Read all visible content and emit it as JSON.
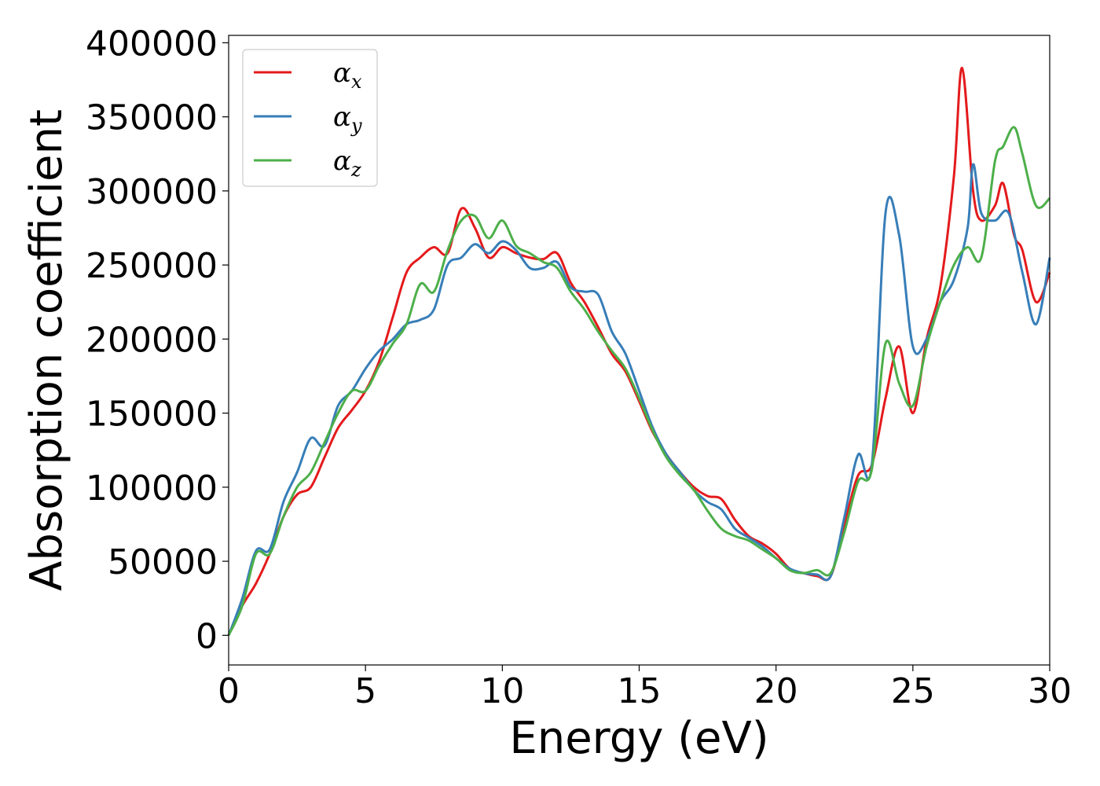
{
  "chart_data": {
    "type": "line",
    "title": "",
    "xlabel": "Energy (eV)",
    "ylabel": "Absorption coefficient",
    "xlim": [
      0,
      30
    ],
    "ylim": [
      -20000,
      405000
    ],
    "xticks": [
      0,
      5,
      10,
      15,
      20,
      25,
      30
    ],
    "yticks": [
      0,
      50000,
      100000,
      150000,
      200000,
      250000,
      300000,
      350000,
      400000
    ],
    "grid": false,
    "legend_position": "top-left",
    "series": [
      {
        "name": "α_x",
        "symbol": "α",
        "subscript": "x",
        "color": "#e41a1c",
        "x": [
          0,
          0.5,
          1,
          1.5,
          2,
          2.5,
          3,
          3.5,
          4,
          4.5,
          5,
          5.5,
          6,
          6.5,
          7,
          7.5,
          8,
          8.5,
          9,
          9.5,
          10,
          10.5,
          11,
          11.5,
          12,
          12.5,
          13,
          13.5,
          14,
          14.5,
          15,
          15.5,
          16,
          16.5,
          17,
          17.5,
          18,
          18.5,
          19,
          19.5,
          20,
          20.5,
          21,
          21.5,
          22,
          22.5,
          23,
          23.5,
          24,
          24.5,
          25,
          25.5,
          26,
          26.5,
          26.8,
          27.2,
          27.5,
          28,
          28.3,
          28.7,
          29,
          29.5,
          30
        ],
        "y": [
          0,
          20000,
          35000,
          55000,
          80000,
          95000,
          100000,
          120000,
          140000,
          152000,
          165000,
          185000,
          215000,
          245000,
          255000,
          262000,
          258000,
          288000,
          275000,
          255000,
          262000,
          258000,
          255000,
          254000,
          258000,
          238000,
          225000,
          208000,
          190000,
          178000,
          158000,
          137000,
          122000,
          110000,
          100000,
          94000,
          92000,
          78000,
          67000,
          62000,
          55000,
          45000,
          42000,
          40000,
          40000,
          75000,
          108000,
          115000,
          160000,
          195000,
          150000,
          200000,
          235000,
          310000,
          383000,
          300000,
          280000,
          290000,
          305000,
          270000,
          260000,
          225000,
          245000
        ]
      },
      {
        "name": "α_y",
        "symbol": "α",
        "subscript": "y",
        "color": "#377eb8",
        "x": [
          0,
          0.5,
          1,
          1.5,
          2,
          2.5,
          3,
          3.5,
          4,
          4.5,
          5,
          5.5,
          6,
          6.5,
          7,
          7.5,
          8,
          8.5,
          9,
          9.5,
          10,
          10.5,
          11,
          11.5,
          12,
          12.5,
          13,
          13.5,
          14,
          14.5,
          15,
          15.5,
          16,
          16.5,
          17,
          17.5,
          18,
          18.5,
          19,
          19.5,
          20,
          20.5,
          21,
          21.5,
          22,
          22.5,
          23,
          23.5,
          24,
          24.5,
          25,
          25.5,
          26,
          26.5,
          27,
          27.2,
          27.5,
          28,
          28.5,
          29,
          29.5,
          30
        ],
        "y": [
          0,
          25000,
          57000,
          58000,
          90000,
          110000,
          133000,
          128000,
          155000,
          165000,
          180000,
          192000,
          200000,
          210000,
          213000,
          220000,
          250000,
          255000,
          264000,
          258000,
          266000,
          260000,
          248000,
          248000,
          252000,
          235000,
          232000,
          230000,
          205000,
          190000,
          165000,
          140000,
          122000,
          110000,
          98000,
          90000,
          85000,
          72000,
          66000,
          60000,
          52000,
          45000,
          42000,
          41000,
          40000,
          80000,
          122000,
          115000,
          285000,
          270000,
          195000,
          200000,
          225000,
          240000,
          275000,
          318000,
          285000,
          280000,
          285000,
          245000,
          210000,
          255000
        ]
      },
      {
        "name": "α_z",
        "symbol": "α",
        "subscript": "z",
        "color": "#4daf4a",
        "x": [
          0,
          0.5,
          1,
          1.5,
          2,
          2.5,
          3,
          3.5,
          4,
          4.5,
          5,
          5.5,
          6,
          6.5,
          7,
          7.5,
          8,
          8.5,
          9,
          9.5,
          10,
          10.5,
          11,
          11.5,
          12,
          12.5,
          13,
          13.5,
          14,
          14.5,
          15,
          15.5,
          16,
          16.5,
          17,
          17.5,
          18,
          18.5,
          19,
          19.5,
          20,
          20.5,
          21,
          21.5,
          22,
          22.5,
          23,
          23.5,
          24,
          24.5,
          25,
          25.5,
          26,
          26.5,
          27,
          27.5,
          28,
          28.3,
          28.7,
          29,
          29.5,
          30
        ],
        "y": [
          0,
          20000,
          55000,
          55000,
          80000,
          100000,
          110000,
          130000,
          150000,
          165000,
          165000,
          182000,
          197000,
          210000,
          237000,
          232000,
          260000,
          280000,
          283000,
          268000,
          280000,
          263000,
          258000,
          252000,
          248000,
          232000,
          220000,
          205000,
          192000,
          180000,
          160000,
          138000,
          120000,
          108000,
          98000,
          84000,
          72000,
          67000,
          64000,
          58000,
          52000,
          44000,
          42000,
          44000,
          42000,
          70000,
          104000,
          112000,
          197000,
          170000,
          155000,
          195000,
          225000,
          250000,
          262000,
          255000,
          320000,
          330000,
          343000,
          325000,
          290000,
          295000
        ]
      }
    ]
  }
}
